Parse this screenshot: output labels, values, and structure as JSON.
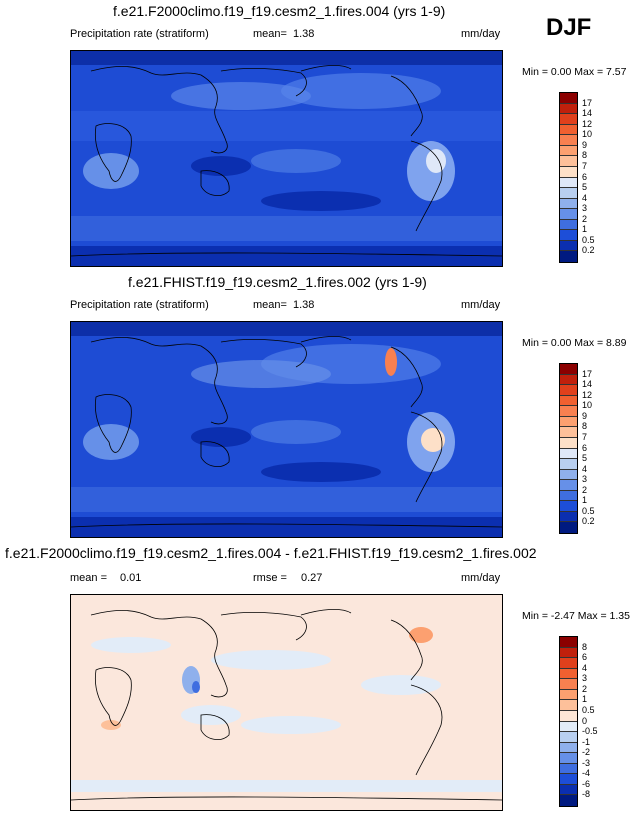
{
  "season": "DJF",
  "units": "mm/day",
  "panels": [
    {
      "id": "p1",
      "title": "f.e21.F2000climo.f19_f19.cesm2_1.fires.004 (yrs 1-9)",
      "variable": "Precipitation rate (stratiform)",
      "stat_label": "mean=",
      "stat_value": "1.38",
      "minmax": "Min =   0.00 Max =   7.57",
      "colorbar_levels": [
        "17",
        "14",
        "12",
        "10",
        "9",
        "8",
        "7",
        "6",
        "5",
        "4",
        "3",
        "2",
        "1",
        "0.5",
        "0.2"
      ],
      "colorbar_colors": [
        "#8b0000",
        "#c0200c",
        "#e0401c",
        "#f06030",
        "#f88050",
        "#fca070",
        "#fdc09a",
        "#fde0c8",
        "#dfe8f8",
        "#b8cff0",
        "#8fb0ec",
        "#6690e8",
        "#3f6ee0",
        "#1d4ed8",
        "#0b2fb0",
        "#001a80"
      ]
    },
    {
      "id": "p2",
      "title": "f.e21.FHIST.f19_f19.cesm2_1.fires.002 (yrs 1-9)",
      "variable": "Precipitation rate (stratiform)",
      "stat_label": "mean=",
      "stat_value": "1.38",
      "minmax": "Min =   0.00 Max =   8.89",
      "colorbar_levels": [
        "17",
        "14",
        "12",
        "10",
        "9",
        "8",
        "7",
        "6",
        "5",
        "4",
        "3",
        "2",
        "1",
        "0.5",
        "0.2"
      ],
      "colorbar_colors": [
        "#8b0000",
        "#c0200c",
        "#e0401c",
        "#f06030",
        "#f88050",
        "#fca070",
        "#fdc09a",
        "#fde0c8",
        "#dfe8f8",
        "#b8cff0",
        "#8fb0ec",
        "#6690e8",
        "#3f6ee0",
        "#1d4ed8",
        "#0b2fb0",
        "#001a80"
      ]
    },
    {
      "id": "p3",
      "title": "f.e21.F2000climo.f19_f19.cesm2_1.fires.004 - f.e21.FHIST.f19_f19.cesm2_1.fires.002",
      "stat_label": "mean =",
      "stat_value": "0.01",
      "rmse_label": "rmse =",
      "rmse_value": "0.27",
      "minmax": "Min =  -2.47 Max =   1.35",
      "colorbar_levels": [
        "8",
        "6",
        "4",
        "3",
        "2",
        "1",
        "0.5",
        "0",
        "-0.5",
        "-1",
        "-2",
        "-3",
        "-4",
        "-6",
        "-8"
      ],
      "colorbar_colors": [
        "#8b0000",
        "#c0200c",
        "#e0401c",
        "#f06030",
        "#f88050",
        "#fca070",
        "#fdc09a",
        "#fde6d6",
        "#e2ecf8",
        "#b8cff0",
        "#8fb0ec",
        "#6690e8",
        "#3f6ee0",
        "#1d4ed8",
        "#0b2fb0",
        "#001a80"
      ]
    }
  ]
}
